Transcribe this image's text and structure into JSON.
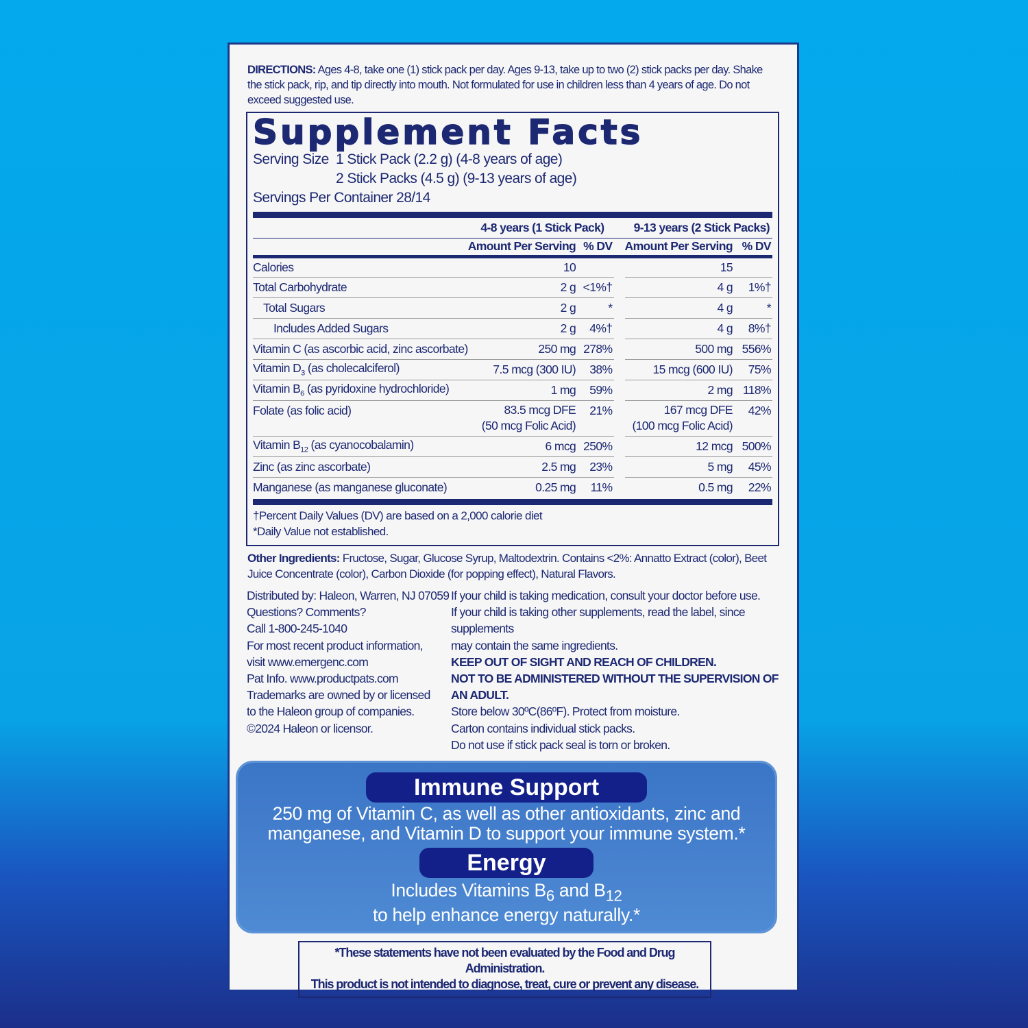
{
  "directions": {
    "label": "DIRECTIONS:",
    "text": " Ages 4-8, take one (1) stick pack per day. Ages 9-13, take up to two (2) stick packs per day. Shake the stick pack, rip, and tip directly into mouth. Not formulated for use in children less than 4 years of age. Do not exceed suggested use."
  },
  "facts": {
    "title": "Supplement Facts",
    "serving_size_label": "Serving Size",
    "serving_size_1": "1 Stick Pack (2.2 g) (4-8 years of age)",
    "serving_size_2": "2 Stick Packs (4.5 g) (9-13 years of age)",
    "servings_per_container": "Servings Per Container 28/14",
    "group1": "4-8 years (1 Stick Pack)",
    "group2": "9-13 years (2 Stick Packs)",
    "amount_header": "Amount Per Serving",
    "dv_header": "% DV",
    "rows": [
      {
        "name": "Calories",
        "sub": "",
        "rest": "",
        "indent": 0,
        "a1": "10",
        "d1": "",
        "a2": "15",
        "d2": ""
      },
      {
        "name": "Total Carbohydrate",
        "sub": "",
        "rest": "",
        "indent": 0,
        "a1": "2 g",
        "d1": "<1%†",
        "a2": "4 g",
        "d2": "1%†"
      },
      {
        "name": "Total Sugars",
        "sub": "",
        "rest": "",
        "indent": 1,
        "a1": "2 g",
        "d1": "*",
        "a2": "4 g",
        "d2": "*"
      },
      {
        "name": "Includes Added Sugars",
        "sub": "",
        "rest": "",
        "indent": 2,
        "a1": "2 g",
        "d1": "4%†",
        "a2": "4 g",
        "d2": "8%†"
      },
      {
        "name": "Vitamin C (as ascorbic acid, zinc ascorbate)",
        "sub": "",
        "rest": "",
        "indent": 0,
        "a1": "250 mg",
        "d1": "278%",
        "a2": "500 mg",
        "d2": "556%"
      },
      {
        "name": "Vitamin D",
        "sub": "3",
        "rest": " (as cholecalciferol)",
        "indent": 0,
        "a1": "7.5 mcg (300 IU)",
        "d1": "38%",
        "a2": "15 mcg (600 IU)",
        "d2": "75%"
      },
      {
        "name": "Vitamin B",
        "sub": "6",
        "rest": " (as pyridoxine hydrochloride)",
        "indent": 0,
        "a1": "1 mg",
        "d1": "59%",
        "a2": "2 mg",
        "d2": "118%"
      },
      {
        "name": "Folate (as folic acid)",
        "sub": "",
        "rest": "",
        "indent": 0,
        "a1": "83.5 mcg DFE",
        "a1b": "(50 mcg Folic Acid)",
        "d1": "21%",
        "a2": "167 mcg DFE",
        "a2b": "(100 mcg Folic Acid)",
        "d2": "42%"
      },
      {
        "name": "Vitamin B",
        "sub": "12",
        "rest": " (as cyanocobalamin)",
        "indent": 0,
        "a1": "6 mcg",
        "d1": "250%",
        "a2": "12 mcg",
        "d2": "500%"
      },
      {
        "name": "Zinc (as zinc ascorbate)",
        "sub": "",
        "rest": "",
        "indent": 0,
        "a1": "2.5 mg",
        "d1": "23%",
        "a2": "5 mg",
        "d2": "45%"
      },
      {
        "name": "Manganese (as manganese gluconate)",
        "sub": "",
        "rest": "",
        "indent": 0,
        "a1": "0.25 mg",
        "d1": "11%",
        "a2": "0.5 mg",
        "d2": "22%"
      }
    ],
    "footnote1": "†Percent Daily Values (DV) are based on a 2,000 calorie diet",
    "footnote2": "*Daily Value not established."
  },
  "other_ingredients": {
    "label": "Other Ingredients:",
    "text": " Fructose, Sugar, Glucose Syrup, Maltodextrin. Contains <2%: Annatto Extract (color), Beet Juice Concentrate (color), Carbon Dioxide (for popping effect), Natural Flavors."
  },
  "distribution": [
    "Distributed by: Haleon, Warren, NJ 07059",
    "Questions? Comments?",
    "Call 1-800-245-1040",
    "For most recent product information,",
    "visit www.emergenc.com",
    "Pat Info. www.productpats.com",
    "Trademarks are owned by or licensed",
    "to the Haleon group of companies.",
    "©2024 Haleon or licensor."
  ],
  "warnings": [
    {
      "text": "If your child is taking medication, consult your doctor before use.",
      "bold": false
    },
    {
      "text": "If your child is taking other supplements, read the label, since supplements",
      "bold": false
    },
    {
      "text": "may contain the same ingredients.",
      "bold": false
    },
    {
      "text": "KEEP OUT OF SIGHT AND REACH OF CHILDREN.",
      "bold": true
    },
    {
      "text": "NOT TO BE ADMINISTERED WITHOUT THE SUPERVISION OF AN ADULT.",
      "bold": true
    },
    {
      "text": "Store below 30ºC(86ºF). Protect from moisture.",
      "bold": false
    },
    {
      "text": "Carton contains individual stick packs.",
      "bold": false
    },
    {
      "text": "Do not use if stick pack seal is torn or broken.",
      "bold": false
    }
  ],
  "benefits": {
    "immune_title": "Immune Support",
    "immune_line1": "250 mg of Vitamin C, as well as other antioxidants, zinc and",
    "immune_line2": "manganese, and Vitamin D to support your immune system.*",
    "energy_title": "Energy",
    "energy_pre": "Includes Vitamins B",
    "energy_sub1": "6",
    "energy_mid": " and B",
    "energy_sub2": "12",
    "energy_line2": "to help enhance energy naturally.*"
  },
  "disclaimer": {
    "line1": "*These statements have not been evaluated by the Food and Drug Administration.",
    "line2": "This product is not intended to diagnose, treat, cure or prevent any disease."
  },
  "colors": {
    "navy": "#1c2872",
    "sky_background": "#03a9ec",
    "panel_blue": "#3b75c6"
  }
}
